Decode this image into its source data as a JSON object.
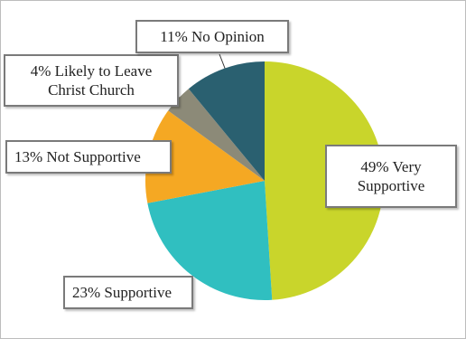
{
  "chart_data": {
    "type": "pie",
    "categories": [
      "Very Supportive",
      "Supportive",
      "Not Supportive",
      "Likely to Leave Christ Church",
      "No Opinion"
    ],
    "values": [
      49,
      23,
      13,
      4,
      11
    ],
    "value_labels": [
      "49%",
      "23%",
      "13%",
      "4%",
      "11%"
    ],
    "colors": [
      "#c9d52b",
      "#30bfc0",
      "#f5a823",
      "#8c8a78",
      "#2a6070"
    ]
  }
}
